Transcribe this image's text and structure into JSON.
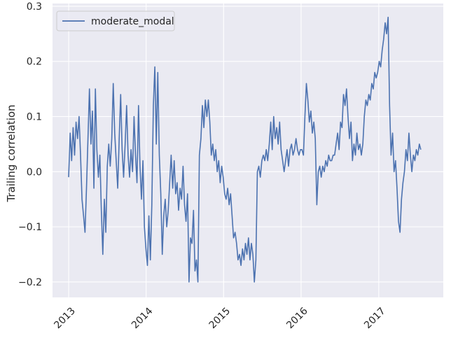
{
  "chart_data": {
    "type": "line",
    "title": "",
    "xlabel": "",
    "ylabel": "Trailing correlation",
    "xlim": [
      "2012-10-17",
      "2017-11-01"
    ],
    "ylim": [
      -0.228,
      0.305
    ],
    "xticks": [
      {
        "value": "2013-01-01",
        "label": "2013"
      },
      {
        "value": "2014-01-01",
        "label": "2014"
      },
      {
        "value": "2015-01-01",
        "label": "2015"
      },
      {
        "value": "2016-01-01",
        "label": "2016"
      },
      {
        "value": "2017-01-01",
        "label": "2017"
      }
    ],
    "yticks": [
      {
        "value": 0.3,
        "label": "0.3"
      },
      {
        "value": 0.2,
        "label": "0.2"
      },
      {
        "value": 0.1,
        "label": "0.1"
      },
      {
        "value": 0.0,
        "label": "0.0"
      },
      {
        "value": -0.1,
        "label": "−0.1"
      },
      {
        "value": -0.2,
        "label": "−0.2"
      }
    ],
    "grid": true,
    "legend_position": "top-left",
    "background": "#eaeaf2",
    "series": [
      {
        "name": "moderate_modal",
        "color": "#4c72b0",
        "points": [
          [
            "2013-01-01",
            -0.01
          ],
          [
            "2013-01-08",
            0.07
          ],
          [
            "2013-01-15",
            0.02
          ],
          [
            "2013-01-22",
            0.08
          ],
          [
            "2013-01-29",
            0.03
          ],
          [
            "2013-02-05",
            0.09
          ],
          [
            "2013-02-12",
            0.06
          ],
          [
            "2013-02-19",
            0.1
          ],
          [
            "2013-02-26",
            0.03
          ],
          [
            "2013-03-05",
            -0.05
          ],
          [
            "2013-03-12",
            -0.08
          ],
          [
            "2013-03-19",
            -0.11
          ],
          [
            "2013-03-26",
            -0.03
          ],
          [
            "2013-04-02",
            0.06
          ],
          [
            "2013-04-09",
            0.15
          ],
          [
            "2013-04-16",
            0.05
          ],
          [
            "2013-04-23",
            0.11
          ],
          [
            "2013-04-30",
            -0.03
          ],
          [
            "2013-05-07",
            0.15
          ],
          [
            "2013-05-14",
            0.04
          ],
          [
            "2013-05-21",
            -0.01
          ],
          [
            "2013-05-28",
            0.03
          ],
          [
            "2013-06-04",
            -0.07
          ],
          [
            "2013-06-11",
            -0.15
          ],
          [
            "2013-06-18",
            -0.05
          ],
          [
            "2013-06-25",
            -0.11
          ],
          [
            "2013-07-02",
            0.01
          ],
          [
            "2013-07-09",
            0.05
          ],
          [
            "2013-07-16",
            0.01
          ],
          [
            "2013-07-23",
            0.06
          ],
          [
            "2013-07-30",
            0.16
          ],
          [
            "2013-08-06",
            0.07
          ],
          [
            "2013-08-13",
            0.02
          ],
          [
            "2013-08-20",
            -0.03
          ],
          [
            "2013-08-27",
            0.06
          ],
          [
            "2013-09-03",
            0.14
          ],
          [
            "2013-09-10",
            0.04
          ],
          [
            "2013-09-17",
            -0.01
          ],
          [
            "2013-09-24",
            0.05
          ],
          [
            "2013-10-01",
            0.12
          ],
          [
            "2013-10-08",
            0.03
          ],
          [
            "2013-10-15",
            -0.01
          ],
          [
            "2013-10-22",
            0.04
          ],
          [
            "2013-10-29",
            0.0
          ],
          [
            "2013-11-05",
            0.1
          ],
          [
            "2013-11-12",
            0.03
          ],
          [
            "2013-11-19",
            -0.02
          ],
          [
            "2013-11-26",
            0.12
          ],
          [
            "2013-12-03",
            0.01
          ],
          [
            "2013-12-10",
            -0.05
          ],
          [
            "2013-12-17",
            0.02
          ],
          [
            "2013-12-24",
            -0.1
          ],
          [
            "2013-12-31",
            -0.14
          ],
          [
            "2014-01-07",
            -0.17
          ],
          [
            "2014-01-14",
            -0.08
          ],
          [
            "2014-01-21",
            -0.16
          ],
          [
            "2014-01-28",
            -0.06
          ],
          [
            "2014-02-04",
            0.12
          ],
          [
            "2014-02-11",
            0.19
          ],
          [
            "2014-02-18",
            0.05
          ],
          [
            "2014-02-25",
            0.18
          ],
          [
            "2014-03-04",
            0.03
          ],
          [
            "2014-03-11",
            -0.04
          ],
          [
            "2014-03-18",
            -0.15
          ],
          [
            "2014-03-25",
            -0.08
          ],
          [
            "2014-04-01",
            -0.05
          ],
          [
            "2014-04-08",
            -0.1
          ],
          [
            "2014-04-15",
            -0.07
          ],
          [
            "2014-04-22",
            -0.02
          ],
          [
            "2014-04-29",
            0.03
          ],
          [
            "2014-05-06",
            -0.03
          ],
          [
            "2014-05-13",
            0.02
          ],
          [
            "2014-05-20",
            -0.04
          ],
          [
            "2014-05-27",
            -0.02
          ],
          [
            "2014-06-03",
            -0.07
          ],
          [
            "2014-06-10",
            -0.03
          ],
          [
            "2014-06-17",
            -0.05
          ],
          [
            "2014-06-24",
            0.01
          ],
          [
            "2014-07-01",
            -0.06
          ],
          [
            "2014-07-08",
            -0.09
          ],
          [
            "2014-07-15",
            -0.04
          ],
          [
            "2014-07-22",
            -0.2
          ],
          [
            "2014-07-29",
            -0.12
          ],
          [
            "2014-08-05",
            -0.13
          ],
          [
            "2014-08-12",
            -0.07
          ],
          [
            "2014-08-19",
            -0.18
          ],
          [
            "2014-08-26",
            -0.16
          ],
          [
            "2014-09-02",
            -0.2
          ],
          [
            "2014-09-09",
            0.03
          ],
          [
            "2014-09-16",
            0.06
          ],
          [
            "2014-09-23",
            0.12
          ],
          [
            "2014-09-30",
            0.08
          ],
          [
            "2014-10-07",
            0.13
          ],
          [
            "2014-10-14",
            0.1
          ],
          [
            "2014-10-21",
            0.13
          ],
          [
            "2014-10-28",
            0.09
          ],
          [
            "2014-11-04",
            0.03
          ],
          [
            "2014-11-11",
            0.05
          ],
          [
            "2014-11-18",
            0.02
          ],
          [
            "2014-11-25",
            0.04
          ],
          [
            "2014-12-02",
            0.0
          ],
          [
            "2014-12-09",
            0.02
          ],
          [
            "2014-12-16",
            -0.02
          ],
          [
            "2014-12-23",
            0.01
          ],
          [
            "2014-12-30",
            -0.01
          ],
          [
            "2015-01-06",
            -0.04
          ],
          [
            "2015-01-13",
            -0.05
          ],
          [
            "2015-01-20",
            -0.03
          ],
          [
            "2015-01-27",
            -0.06
          ],
          [
            "2015-02-03",
            -0.04
          ],
          [
            "2015-02-10",
            -0.08
          ],
          [
            "2015-02-17",
            -0.12
          ],
          [
            "2015-02-24",
            -0.11
          ],
          [
            "2015-03-03",
            -0.13
          ],
          [
            "2015-03-10",
            -0.16
          ],
          [
            "2015-03-17",
            -0.15
          ],
          [
            "2015-03-24",
            -0.17
          ],
          [
            "2015-03-31",
            -0.14
          ],
          [
            "2015-04-07",
            -0.16
          ],
          [
            "2015-04-14",
            -0.13
          ],
          [
            "2015-04-21",
            -0.15
          ],
          [
            "2015-04-28",
            -0.12
          ],
          [
            "2015-05-05",
            -0.16
          ],
          [
            "2015-05-12",
            -0.13
          ],
          [
            "2015-05-19",
            -0.15
          ],
          [
            "2015-05-26",
            -0.2
          ],
          [
            "2015-06-02",
            -0.16
          ],
          [
            "2015-06-09",
            0.0
          ],
          [
            "2015-06-16",
            0.01
          ],
          [
            "2015-06-23",
            -0.01
          ],
          [
            "2015-06-30",
            0.02
          ],
          [
            "2015-07-07",
            0.03
          ],
          [
            "2015-07-14",
            0.02
          ],
          [
            "2015-07-21",
            0.04
          ],
          [
            "2015-07-28",
            0.02
          ],
          [
            "2015-08-04",
            0.05
          ],
          [
            "2015-08-11",
            0.09
          ],
          [
            "2015-08-18",
            0.04
          ],
          [
            "2015-08-25",
            0.1
          ],
          [
            "2015-09-01",
            0.06
          ],
          [
            "2015-09-08",
            0.08
          ],
          [
            "2015-09-15",
            0.05
          ],
          [
            "2015-09-22",
            0.09
          ],
          [
            "2015-09-29",
            0.04
          ],
          [
            "2015-10-06",
            0.02
          ],
          [
            "2015-10-13",
            0.0
          ],
          [
            "2015-10-20",
            0.02
          ],
          [
            "2015-10-27",
            0.04
          ],
          [
            "2015-11-03",
            0.01
          ],
          [
            "2015-11-10",
            0.04
          ],
          [
            "2015-11-17",
            0.05
          ],
          [
            "2015-11-24",
            0.03
          ],
          [
            "2015-12-01",
            0.04
          ],
          [
            "2015-12-08",
            0.06
          ],
          [
            "2015-12-15",
            0.04
          ],
          [
            "2015-12-22",
            0.03
          ],
          [
            "2015-12-29",
            0.04
          ],
          [
            "2016-01-05",
            0.04
          ],
          [
            "2016-01-12",
            0.03
          ],
          [
            "2016-01-19",
            0.1
          ],
          [
            "2016-01-26",
            0.16
          ],
          [
            "2016-02-02",
            0.13
          ],
          [
            "2016-02-09",
            0.09
          ],
          [
            "2016-02-16",
            0.11
          ],
          [
            "2016-02-23",
            0.07
          ],
          [
            "2016-03-01",
            0.09
          ],
          [
            "2016-03-08",
            0.06
          ],
          [
            "2016-03-15",
            -0.06
          ],
          [
            "2016-03-22",
            0.0
          ],
          [
            "2016-03-29",
            0.01
          ],
          [
            "2016-04-05",
            -0.01
          ],
          [
            "2016-04-12",
            0.01
          ],
          [
            "2016-04-19",
            0.0
          ],
          [
            "2016-04-26",
            0.02
          ],
          [
            "2016-05-03",
            0.01
          ],
          [
            "2016-05-10",
            0.03
          ],
          [
            "2016-05-17",
            0.02
          ],
          [
            "2016-05-24",
            0.02
          ],
          [
            "2016-05-31",
            0.03
          ],
          [
            "2016-06-07",
            0.03
          ],
          [
            "2016-06-14",
            0.05
          ],
          [
            "2016-06-21",
            0.07
          ],
          [
            "2016-06-28",
            0.04
          ],
          [
            "2016-07-05",
            0.09
          ],
          [
            "2016-07-12",
            0.08
          ],
          [
            "2016-07-19",
            0.14
          ],
          [
            "2016-07-26",
            0.12
          ],
          [
            "2016-08-02",
            0.15
          ],
          [
            "2016-08-09",
            0.1
          ],
          [
            "2016-08-16",
            0.06
          ],
          [
            "2016-08-23",
            0.09
          ],
          [
            "2016-08-30",
            0.02
          ],
          [
            "2016-09-06",
            0.05
          ],
          [
            "2016-09-13",
            0.03
          ],
          [
            "2016-09-20",
            0.07
          ],
          [
            "2016-09-27",
            0.04
          ],
          [
            "2016-10-04",
            0.05
          ],
          [
            "2016-10-11",
            0.03
          ],
          [
            "2016-10-18",
            0.05
          ],
          [
            "2016-10-25",
            0.1
          ],
          [
            "2016-11-01",
            0.13
          ],
          [
            "2016-11-08",
            0.12
          ],
          [
            "2016-11-15",
            0.14
          ],
          [
            "2016-11-22",
            0.13
          ],
          [
            "2016-11-29",
            0.16
          ],
          [
            "2016-12-06",
            0.15
          ],
          [
            "2016-12-13",
            0.18
          ],
          [
            "2016-12-20",
            0.17
          ],
          [
            "2016-12-27",
            0.18
          ],
          [
            "2017-01-03",
            0.2
          ],
          [
            "2017-01-10",
            0.19
          ],
          [
            "2017-01-17",
            0.22
          ],
          [
            "2017-01-24",
            0.24
          ],
          [
            "2017-01-31",
            0.27
          ],
          [
            "2017-02-07",
            0.25
          ],
          [
            "2017-02-14",
            0.28
          ],
          [
            "2017-02-21",
            0.12
          ],
          [
            "2017-02-28",
            0.03
          ],
          [
            "2017-03-07",
            0.07
          ],
          [
            "2017-03-14",
            0.0
          ],
          [
            "2017-03-21",
            0.02
          ],
          [
            "2017-03-28",
            -0.03
          ],
          [
            "2017-04-04",
            -0.09
          ],
          [
            "2017-04-11",
            -0.11
          ],
          [
            "2017-04-18",
            -0.05
          ],
          [
            "2017-04-25",
            -0.02
          ],
          [
            "2017-05-02",
            0.0
          ],
          [
            "2017-05-09",
            0.04
          ],
          [
            "2017-05-16",
            0.02
          ],
          [
            "2017-05-23",
            0.07
          ],
          [
            "2017-05-30",
            0.03
          ],
          [
            "2017-06-06",
            0.0
          ],
          [
            "2017-06-13",
            0.03
          ],
          [
            "2017-06-20",
            0.02
          ],
          [
            "2017-06-27",
            0.04
          ],
          [
            "2017-07-04",
            0.03
          ],
          [
            "2017-07-11",
            0.05
          ],
          [
            "2017-07-18",
            0.04
          ]
        ]
      }
    ]
  }
}
